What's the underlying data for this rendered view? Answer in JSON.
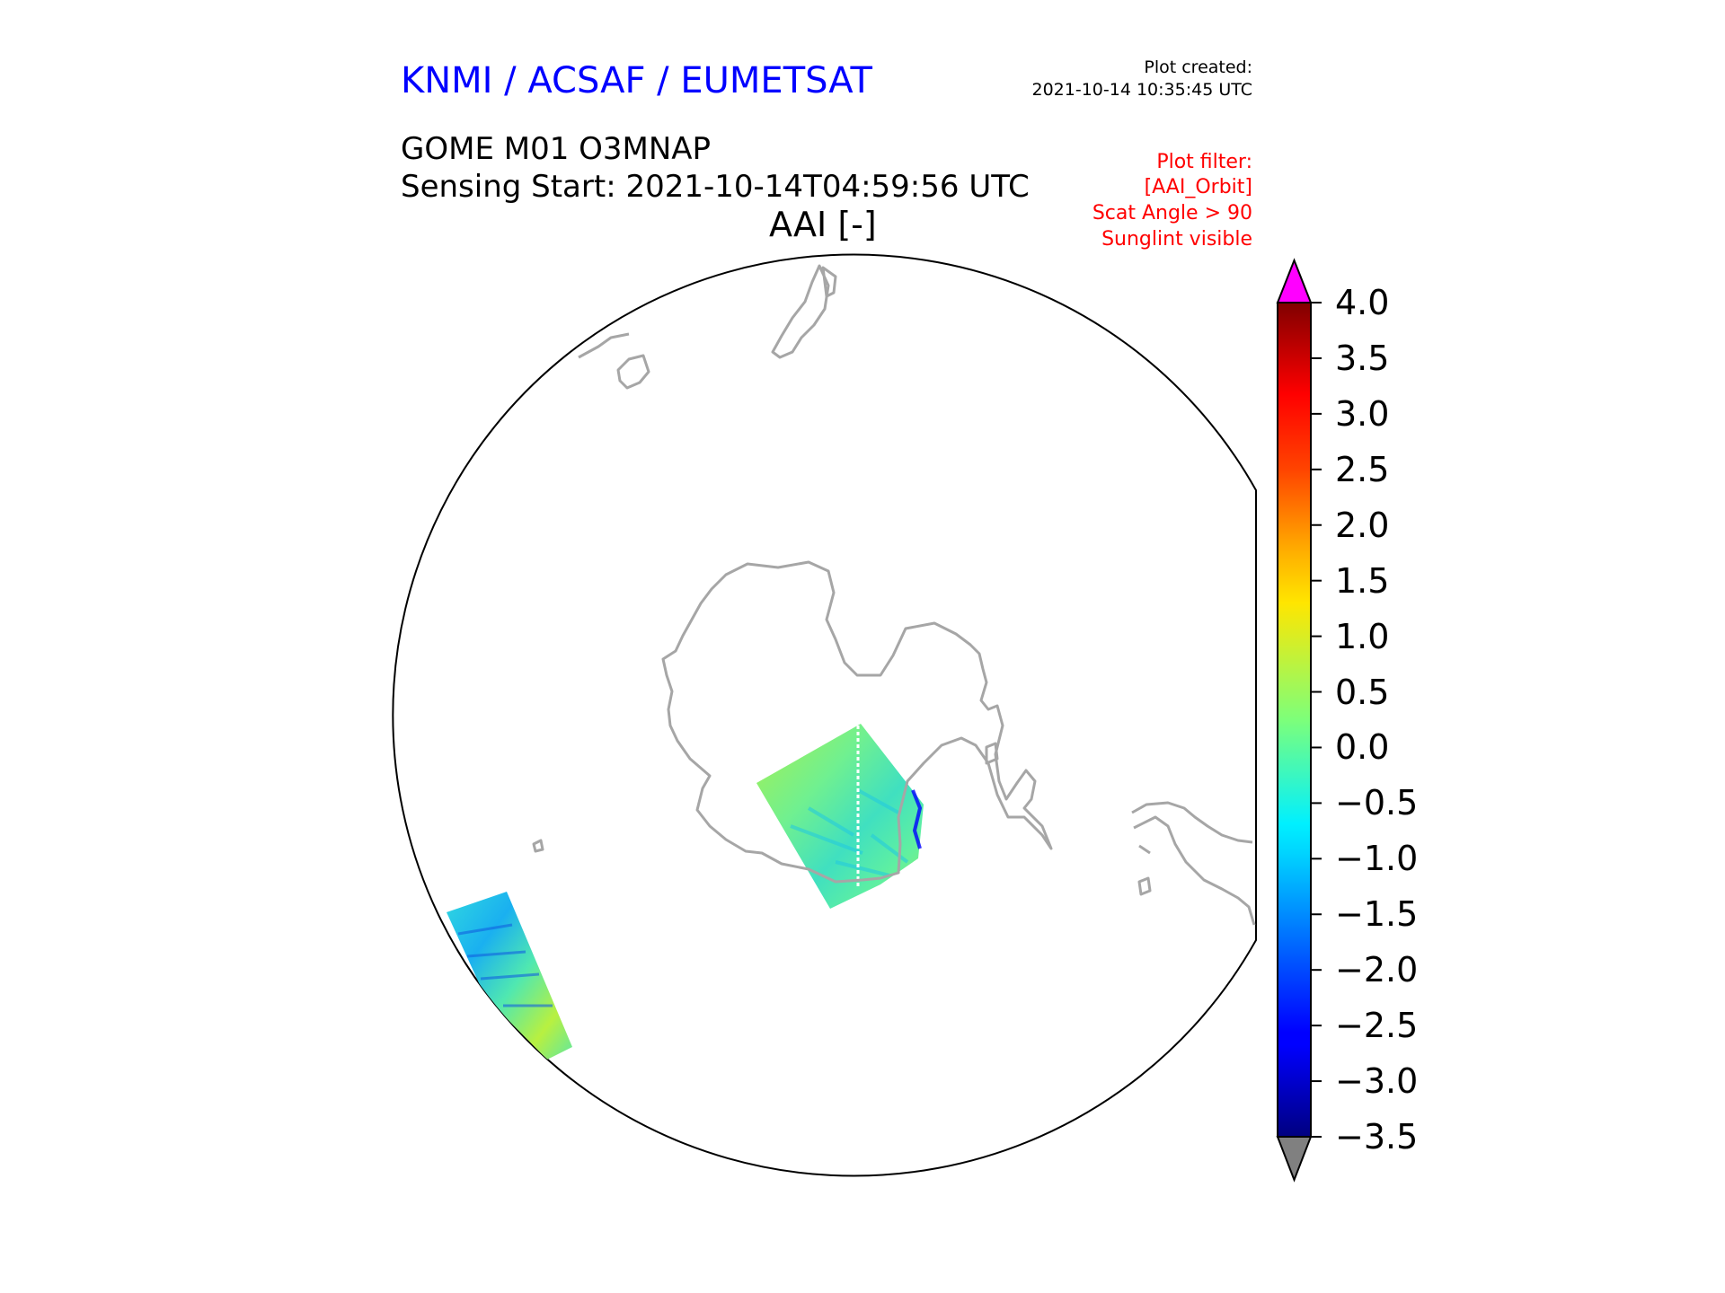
{
  "header": {
    "organization": "KNMI / ACSAF / EUMETSAT",
    "plot_created_label": "Plot created:",
    "plot_created_time": "2021-10-14 10:35:45 UTC",
    "product": "GOME M01 O3MNAP",
    "sensing_start": "Sensing Start: 2021-10-14T04:59:56 UTC",
    "map_title": "AAI [-]"
  },
  "plot_filter": [
    "Plot filter:",
    "[AAI_Orbit]",
    "Scat Angle > 90",
    "Sunglint visible"
  ],
  "colors": {
    "organization_text": "#0000ff",
    "filter_text": "#ff0000",
    "coastline": "#a6a6a6",
    "over_range": "#ff00ff",
    "under_range": "#808080"
  },
  "map": {
    "projection": "south-polar-stereographic",
    "colormap": "jet",
    "swaths": [
      "Antarctic Peninsula",
      "South Atlantic edge"
    ]
  },
  "colorbar": {
    "min": -3.5,
    "max": 4.0,
    "extend": "both",
    "tick_labels": [
      "4.0",
      "3.5",
      "3.0",
      "2.5",
      "2.0",
      "1.5",
      "1.0",
      "0.5",
      "0.0",
      "−0.5",
      "−1.0",
      "−1.5",
      "−2.0",
      "−2.5",
      "−3.0",
      "−3.5"
    ]
  }
}
